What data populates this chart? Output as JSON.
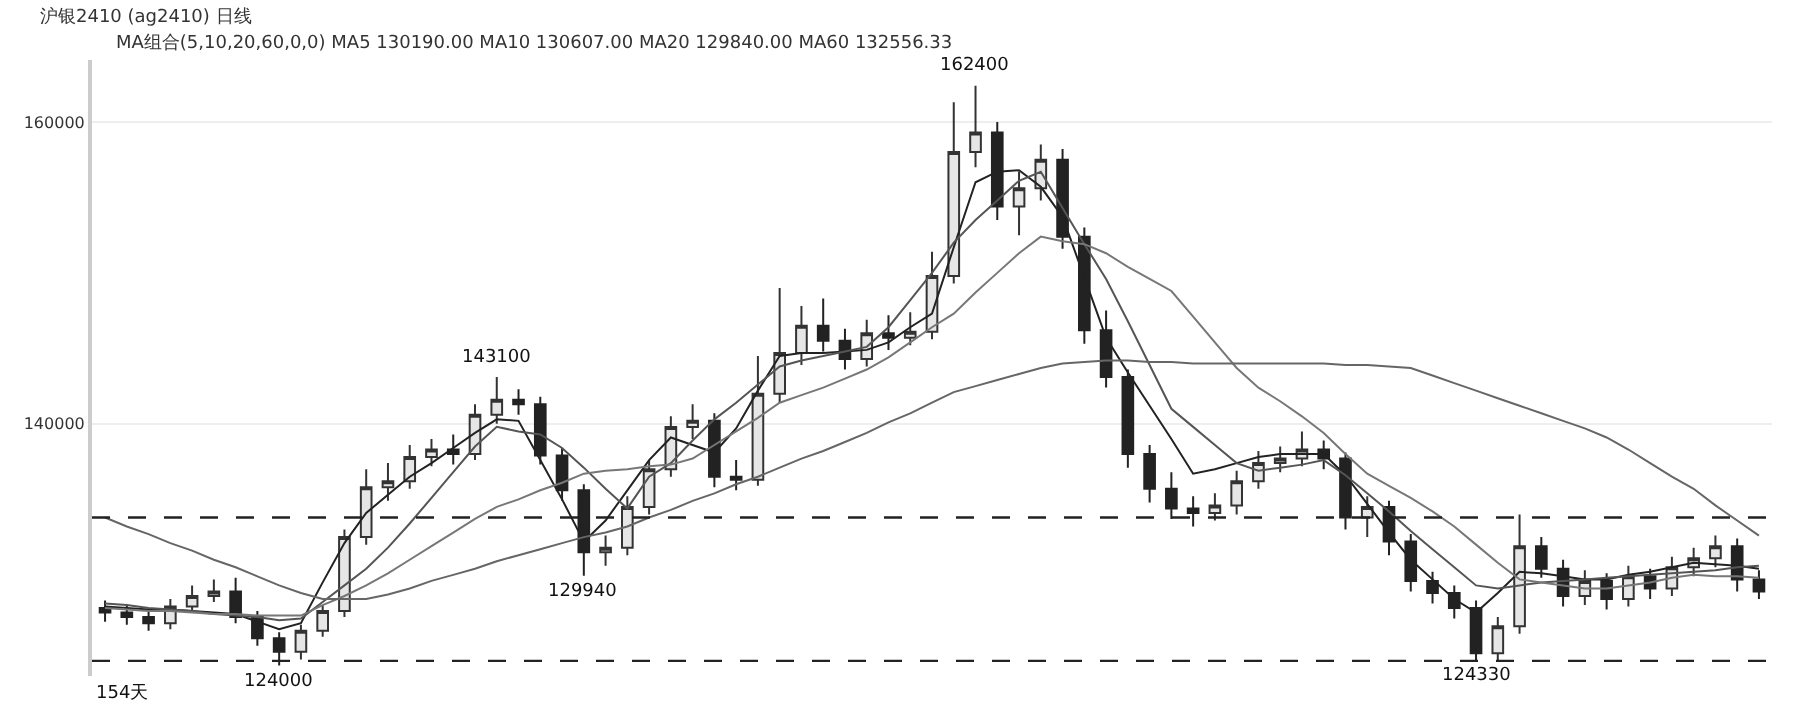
{
  "chart_data": {
    "type": "candlestick",
    "title": "沪银2410 (ag2410) 日线",
    "subtitle": "MA组合(5,10,20,60,0,0) MA5 130190.00 MA10 130607.00 MA20 129840.00 MA60 132556.33",
    "categories": [
      null,
      null,
      null,
      null,
      null,
      null,
      null,
      null,
      null,
      null,
      null,
      null,
      null,
      null,
      null,
      null,
      null,
      null,
      null,
      null,
      null,
      null,
      null,
      null,
      null,
      null,
      null,
      null,
      null,
      null,
      null,
      null,
      null,
      null,
      null,
      null,
      null,
      null,
      null,
      null,
      null,
      null,
      null,
      null,
      null,
      null,
      null,
      null,
      null,
      null,
      null,
      null,
      null,
      null,
      null,
      null,
      null,
      null,
      null,
      null,
      null,
      null,
      null,
      null,
      null,
      null,
      null,
      null,
      null,
      null,
      null,
      null,
      null,
      null,
      null,
      null,
      null
    ],
    "ohlc": [
      [
        127800,
        128300,
        126900,
        127500
      ],
      [
        127500,
        128000,
        126700,
        127200
      ],
      [
        127200,
        127700,
        126300,
        126800
      ],
      [
        126800,
        128400,
        126400,
        127900
      ],
      [
        127900,
        129300,
        127500,
        128600
      ],
      [
        128600,
        129700,
        128200,
        128900
      ],
      [
        128900,
        129800,
        126800,
        127200
      ],
      [
        127200,
        127600,
        125300,
        125800
      ],
      [
        125800,
        126200,
        124000,
        124900
      ],
      [
        124900,
        126700,
        124400,
        126300
      ],
      [
        126300,
        128000,
        125900,
        127600
      ],
      [
        127600,
        133000,
        127200,
        132500
      ],
      [
        132500,
        137000,
        132000,
        135800
      ],
      [
        135800,
        137400,
        134900,
        136200
      ],
      [
        136200,
        138600,
        135700,
        137800
      ],
      [
        137800,
        139000,
        137200,
        138300
      ],
      [
        138300,
        139300,
        137300,
        138000
      ],
      [
        138000,
        141300,
        137600,
        140600
      ],
      [
        140600,
        143100,
        140000,
        141600
      ],
      [
        141600,
        142300,
        140600,
        141300
      ],
      [
        141300,
        141800,
        137300,
        137900
      ],
      [
        137900,
        138400,
        134900,
        135600
      ],
      [
        135600,
        136000,
        129940,
        131500
      ],
      [
        131500,
        132600,
        130600,
        131800
      ],
      [
        131800,
        135200,
        131300,
        134500
      ],
      [
        134500,
        137600,
        134000,
        137000
      ],
      [
        137000,
        140500,
        136500,
        139800
      ],
      [
        139800,
        141300,
        139000,
        140200
      ],
      [
        140200,
        140700,
        135800,
        136500
      ],
      [
        136500,
        137600,
        135600,
        136300
      ],
      [
        136300,
        144500,
        135900,
        142000
      ],
      [
        142000,
        149000,
        141400,
        144700
      ],
      [
        144700,
        147800,
        143900,
        146500
      ],
      [
        146500,
        148300,
        144800,
        145500
      ],
      [
        145500,
        146300,
        143600,
        144300
      ],
      [
        144300,
        146900,
        143800,
        146000
      ],
      [
        146000,
        147200,
        144900,
        145700
      ],
      [
        145700,
        147400,
        145200,
        146100
      ],
      [
        146100,
        151400,
        145600,
        149800
      ],
      [
        149800,
        161300,
        149300,
        158000
      ],
      [
        158000,
        162400,
        157000,
        159300
      ],
      [
        159300,
        160000,
        153500,
        154400
      ],
      [
        154400,
        156700,
        152500,
        155600
      ],
      [
        155600,
        158500,
        154800,
        157500
      ],
      [
        157500,
        158200,
        151600,
        152400
      ],
      [
        152400,
        153000,
        145300,
        146200
      ],
      [
        146200,
        147500,
        142400,
        143100
      ],
      [
        143100,
        143600,
        137100,
        138000
      ],
      [
        138000,
        138600,
        134800,
        135700
      ],
      [
        135700,
        136800,
        133700,
        134400
      ],
      [
        134400,
        135200,
        133200,
        134100
      ],
      [
        134100,
        135400,
        133600,
        134600
      ],
      [
        134600,
        136900,
        134000,
        136200
      ],
      [
        136200,
        138200,
        135700,
        137400
      ],
      [
        137400,
        138500,
        136800,
        137700
      ],
      [
        137700,
        139500,
        137200,
        138300
      ],
      [
        138300,
        138900,
        137000,
        137700
      ],
      [
        137700,
        138100,
        133000,
        133800
      ],
      [
        133800,
        135200,
        132500,
        134500
      ],
      [
        134500,
        134900,
        131300,
        132200
      ],
      [
        132200,
        132700,
        128900,
        129600
      ],
      [
        129600,
        130200,
        128100,
        128800
      ],
      [
        128800,
        129300,
        127100,
        127800
      ],
      [
        127800,
        128300,
        124330,
        124800
      ],
      [
        124800,
        127200,
        124300,
        126600
      ],
      [
        126600,
        134000,
        126100,
        131900
      ],
      [
        131900,
        132500,
        129800,
        130400
      ],
      [
        130400,
        131000,
        127900,
        128600
      ],
      [
        128600,
        130300,
        128000,
        129600
      ],
      [
        129600,
        130100,
        127700,
        128400
      ],
      [
        128400,
        130600,
        127900,
        129900
      ],
      [
        129900,
        130400,
        128400,
        129100
      ],
      [
        129100,
        131200,
        128600,
        130500
      ],
      [
        130500,
        131800,
        129900,
        131100
      ],
      [
        131100,
        132600,
        130500,
        131900
      ],
      [
        131900,
        132400,
        128900,
        129700
      ],
      [
        129700,
        130300,
        128400,
        128900
      ]
    ],
    "series": [
      {
        "type": "line",
        "color": "#222222",
        "values": [
          127900,
          127800,
          127700,
          127700,
          127600,
          127500,
          127400,
          126900,
          126400,
          126800,
          129500,
          132100,
          134100,
          135300,
          136500,
          137400,
          138400,
          139400,
          140300,
          140200,
          137600,
          135000,
          132200,
          133600,
          135600,
          137600,
          139100,
          138600,
          138100,
          139700,
          142200,
          144500,
          144700,
          144700,
          144800,
          144900,
          145400,
          146400,
          147300,
          151700,
          156000,
          156700,
          156800,
          155700,
          153700,
          149700,
          145700,
          143400,
          141200,
          139000,
          136700,
          137000,
          137400,
          137800,
          138000,
          138000,
          138000,
          136600,
          134700,
          132800,
          131000,
          129700,
          128400,
          127500,
          128800,
          130200,
          130100,
          129900,
          129700,
          129700,
          130000,
          130200,
          130500,
          130800,
          130700,
          130600,
          130400
        ]
      },
      {
        "type": "line",
        "color": "#555555",
        "values": [
          128100,
          128000,
          127800,
          127700,
          127600,
          127400,
          127300,
          127200,
          127000,
          127100,
          128200,
          129300,
          130400,
          131800,
          133400,
          135100,
          136800,
          138500,
          139800,
          139500,
          139300,
          138400,
          137100,
          135700,
          134400,
          136500,
          137400,
          138900,
          140300,
          141400,
          142600,
          143800,
          144200,
          144500,
          144800,
          145100,
          146400,
          148200,
          150000,
          152000,
          153500,
          154800,
          156100,
          156700,
          154300,
          151900,
          149600,
          146800,
          143900,
          141000,
          139800,
          138600,
          137400,
          136900,
          137100,
          137300,
          137600,
          136600,
          135400,
          134200,
          132900,
          131700,
          130500,
          129300,
          129100,
          129300,
          129500,
          129600,
          129700,
          129800,
          129900,
          130000,
          130100,
          130200,
          130300,
          130500,
          130600
        ]
      },
      {
        "type": "line",
        "color": "#777777",
        "values": [
          127800,
          127700,
          127600,
          127600,
          127500,
          127400,
          127400,
          127300,
          127300,
          127300,
          128000,
          128600,
          129300,
          130100,
          131000,
          131900,
          132800,
          133700,
          134500,
          135000,
          135600,
          136100,
          136700,
          136900,
          137000,
          137200,
          137300,
          137700,
          138600,
          139500,
          140400,
          141400,
          141900,
          142400,
          143000,
          143600,
          144400,
          145400,
          146400,
          147300,
          148700,
          150000,
          151300,
          152400,
          152100,
          151900,
          151300,
          150400,
          149600,
          148800,
          147100,
          145400,
          143700,
          142400,
          141500,
          140500,
          139400,
          138000,
          136700,
          135900,
          135100,
          134200,
          133200,
          132000,
          130800,
          129700,
          129500,
          129300,
          129100,
          129100,
          129300,
          129500,
          129800,
          130000,
          129900,
          129900,
          129800
        ]
      },
      {
        "type": "line",
        "color": "#666666",
        "values": [
          133800,
          133200,
          132700,
          132100,
          131600,
          131000,
          130500,
          129900,
          129300,
          128800,
          128400,
          128400,
          128400,
          128700,
          129100,
          129600,
          130000,
          130400,
          130900,
          131300,
          131700,
          132100,
          132500,
          132800,
          133200,
          133800,
          134300,
          134900,
          135400,
          136000,
          136500,
          137100,
          137700,
          138200,
          138800,
          139400,
          140100,
          140700,
          141400,
          142100,
          142500,
          142900,
          143300,
          143700,
          144000,
          144100,
          144200,
          144200,
          144100,
          144100,
          144000,
          144000,
          144000,
          144000,
          144000,
          144000,
          144000,
          143900,
          143900,
          143800,
          143700,
          143200,
          142700,
          142200,
          141700,
          141200,
          140700,
          140200,
          139700,
          139100,
          138300,
          137400,
          136500,
          135700,
          134600,
          133600,
          132600
        ]
      }
    ],
    "ylim": [
      123300,
      164100
    ],
    "yticks": [
      140000,
      160000
    ],
    "grid": "y",
    "tick_labels": "y",
    "line_style": "solid",
    "ref_lines": [
      {
        "axis": "y",
        "value": 133800,
        "color": "#222222",
        "line_style": "dashed"
      },
      {
        "axis": "y",
        "value": 124300,
        "color": "#222222",
        "line_style": "dashed"
      }
    ],
    "annotations": [
      {
        "text": "162400",
        "y": 162400
      },
      {
        "text": "143100",
        "y": 143100
      },
      {
        "text": "124000",
        "y": 124000
      },
      {
        "text": "129940",
        "y": 129940
      },
      {
        "text": "124330",
        "y": 124330
      },
      "154天"
    ]
  }
}
